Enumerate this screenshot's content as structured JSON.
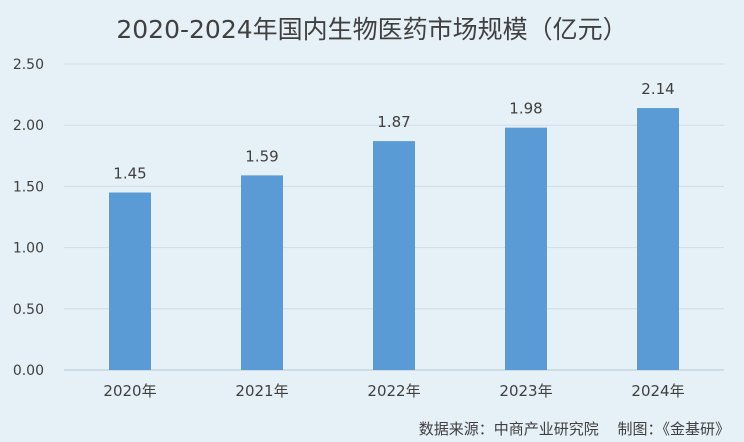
{
  "chart_data": {
    "type": "bar",
    "title": "2020-2024年国内生物医药市场规模（亿元）",
    "categories": [
      "2020年",
      "2021年",
      "2022年",
      "2023年",
      "2024年"
    ],
    "values": [
      1.45,
      1.59,
      1.87,
      1.98,
      2.14
    ],
    "data_labels": [
      "1.45",
      "1.59",
      "1.87",
      "1.98",
      "2.14"
    ],
    "y_ticks": [
      "0.00",
      "0.50",
      "1.00",
      "1.50",
      "2.00",
      "2.50"
    ],
    "ylim": [
      0,
      2.5
    ],
    "grid": true,
    "legend": "none",
    "bar_color": "#5b9bd5",
    "grid_color": "#cfdce8",
    "background": "#e6f0f7"
  },
  "footer": {
    "source": "数据来源：中商产业研究院",
    "made_by": "制图：《金基研》"
  }
}
